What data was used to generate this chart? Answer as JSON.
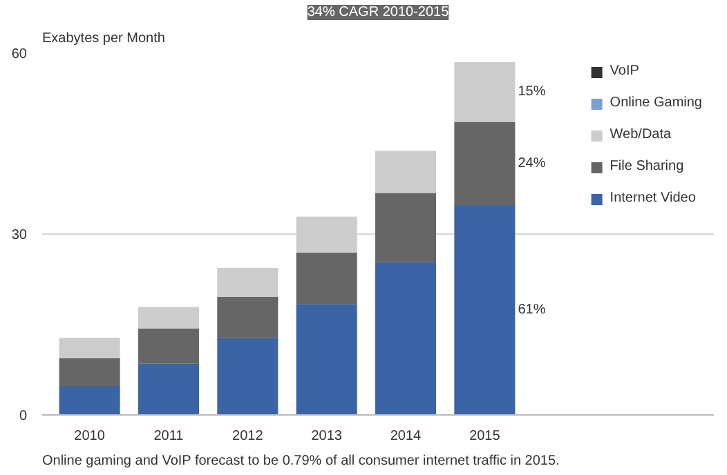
{
  "chart_data": {
    "type": "bar",
    "stacked": true,
    "ylabel": "Exabytes per Month",
    "categories": [
      "2010",
      "2011",
      "2012",
      "2013",
      "2014",
      "2015"
    ],
    "series": [
      {
        "name": "Internet Video",
        "color": "#3a64a3",
        "values": [
          4.8,
          8.5,
          12.8,
          18.4,
          25.4,
          34.8
        ]
      },
      {
        "name": "File Sharing",
        "color": "#666666",
        "values": [
          4.6,
          5.8,
          6.8,
          8.5,
          11.4,
          13.8
        ]
      },
      {
        "name": "Web/Data",
        "color": "#cccccc",
        "values": [
          3.4,
          3.6,
          4.8,
          6.0,
          7.0,
          9.9
        ]
      },
      {
        "name": "Online Gaming",
        "color": "#7ba0d4",
        "values": [
          null,
          null,
          null,
          null,
          null,
          null
        ]
      },
      {
        "name": "VoIP",
        "color": "#333333",
        "values": [
          null,
          null,
          null,
          null,
          null,
          null
        ]
      }
    ],
    "ylim": [
      0,
      60
    ],
    "yticks": [
      0,
      30,
      60
    ],
    "grid": "y",
    "legend": "right",
    "annotations": [
      "34% CAGR 2010-2015",
      "15%",
      "24%",
      "61%",
      "Online gaming and VoIP forecast to be 0.79% of all consumer internet traffic in 2015."
    ]
  }
}
